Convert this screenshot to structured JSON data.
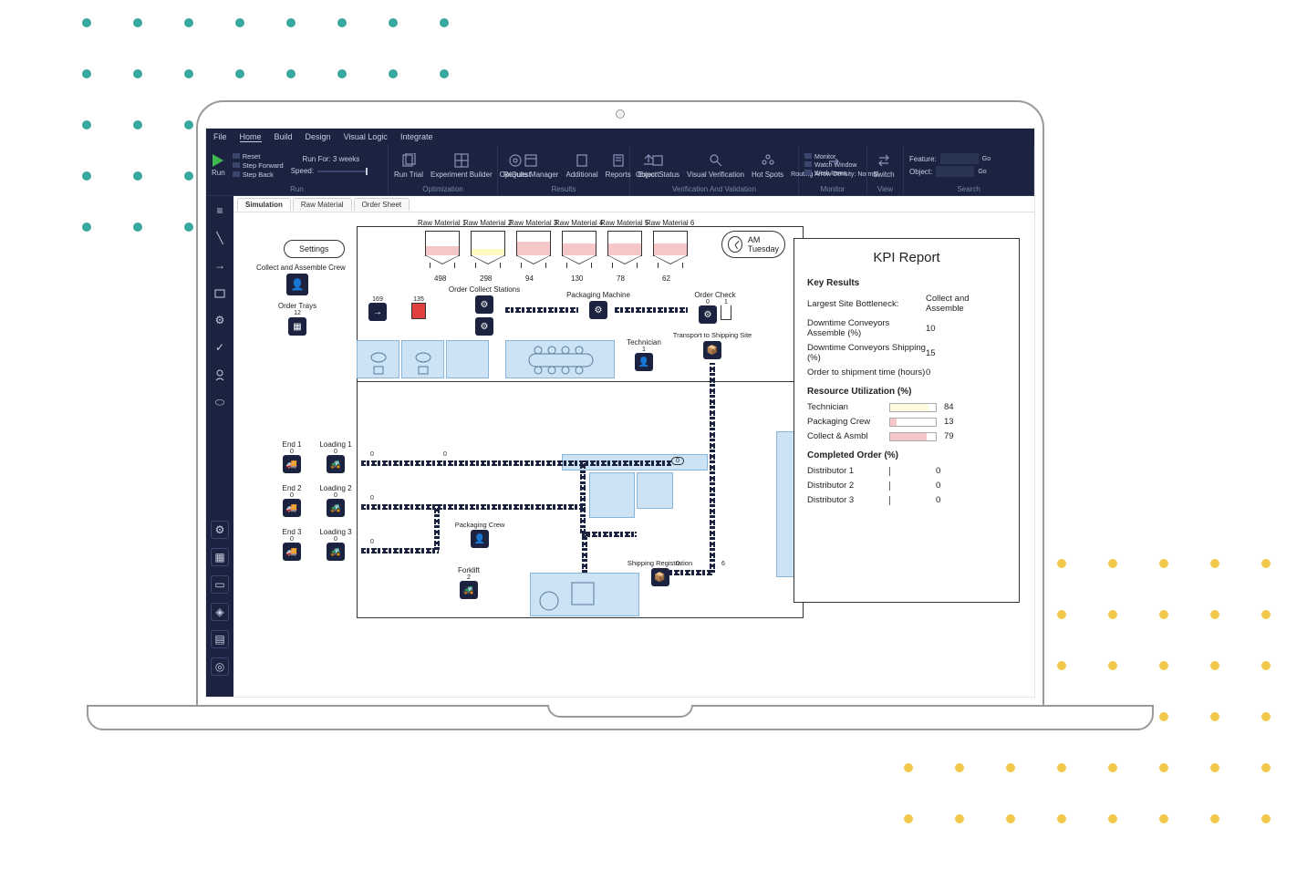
{
  "menus": [
    "File",
    "Home",
    "Build",
    "Design",
    "Visual Logic",
    "Integrate"
  ],
  "ribbon": {
    "run": {
      "run": "Run",
      "reset": "Reset",
      "step_fwd": "Step Forward",
      "step_back": "Step Back",
      "run_for": "Run For: 3 weeks",
      "speed": "Speed:",
      "group": "Run"
    },
    "opt": {
      "run_trial": "Run Trial",
      "exp_builder": "Experiment Builder",
      "optquest": "OptQuest",
      "group": "Optimization"
    },
    "results": {
      "results_mgr": "Results Manager",
      "additional": "Additional",
      "reports": "Reports",
      "export": "Export",
      "group": "Results"
    },
    "verify": {
      "obj_status": "Object Status",
      "visual_ver": "Visual Verification",
      "hot_spots": "Hot Spots",
      "routing": "Routing Arrow Density: Normal",
      "group": "Verification And Validation"
    },
    "monitor": {
      "monitor": "Monitor",
      "watch": "Watch Window",
      "work_items": "Work Items",
      "group": "Monitor"
    },
    "view": {
      "switch": "Switch",
      "group": "View"
    },
    "search": {
      "feature": "Feature:",
      "object": "Object:",
      "go": "Go",
      "group": "Search"
    }
  },
  "tabs": [
    "Simulation",
    "Raw Material",
    "Order Sheet"
  ],
  "settings": "Settings",
  "clock": {
    "ampm": "AM",
    "day": "Tuesday"
  },
  "hoppers": [
    {
      "label": "Raw Material 1",
      "val": "498",
      "fill": 0.35,
      "color": "#f6c7c7"
    },
    {
      "label": "Raw Material 2",
      "val": "298",
      "fill": 0.25,
      "color": "#fff9c4"
    },
    {
      "label": "Raw Material 3",
      "val": "94",
      "fill": 0.55,
      "color": "#f6c7c7"
    },
    {
      "label": "Raw Material 4",
      "val": "130",
      "fill": 0.45,
      "color": "#f6c7c7"
    },
    {
      "label": "Raw Material 5",
      "val": "78",
      "fill": 0.45,
      "color": "#f6c7c7"
    },
    {
      "label": "Raw Material 6",
      "val": "62",
      "fill": 0.45,
      "color": "#f6c7c7"
    }
  ],
  "objects": {
    "collect_crew": "Collect and Assemble Crew",
    "order_trays": "Order Trays",
    "order_trays_n": "12",
    "collect_stations": "Order Collect Stations",
    "packaging_machine": "Packaging Machine",
    "order_check": "Order Check",
    "order_check_n": "0",
    "order_check_n2": "1",
    "technician": "Technician",
    "technician_n": "1",
    "transport": "Transport to Shipping Site",
    "packaging_crew": "Packaging Crew",
    "forklift": "Forklift",
    "forklift_n": "2",
    "shipping_reg": "Shipping Registration",
    "arrow_in": "169",
    "tank": "135",
    "end": [
      "End 1",
      "End 2",
      "End 3"
    ],
    "loading": [
      "Loading 1",
      "Loading 2",
      "Loading 3"
    ],
    "zero": "0",
    "six": "6"
  },
  "kpi": {
    "title": "KPI Report",
    "key_results": "Key Results",
    "rows1": [
      {
        "k": "Largest Site Bottleneck:",
        "v": "Collect and Assemble"
      },
      {
        "k": "Downtime Conveyors Assemble (%)",
        "v": "10"
      },
      {
        "k": "Downtime Conveyors Shipping (%)",
        "v": "15"
      },
      {
        "k": "Order to shipment time (hours)",
        "v": "0"
      }
    ],
    "resource": "Resource Utilization (%)",
    "rows2": [
      {
        "k": "Technician",
        "pct": 84,
        "color": "#fff9e0"
      },
      {
        "k": "Packaging Crew",
        "pct": 13,
        "color": "#f6c7c7"
      },
      {
        "k": "Collect & Asmbl",
        "pct": 79,
        "color": "#f6c7c7"
      }
    ],
    "completed": "Completed Order (%)",
    "rows3": [
      {
        "k": "Distributor 1",
        "v": "0"
      },
      {
        "k": "Distributor 2",
        "v": "0"
      },
      {
        "k": "Distributor 3",
        "v": "0"
      }
    ]
  },
  "colors": {
    "dark": "#1b2340",
    "room": "#cbe3f5"
  }
}
